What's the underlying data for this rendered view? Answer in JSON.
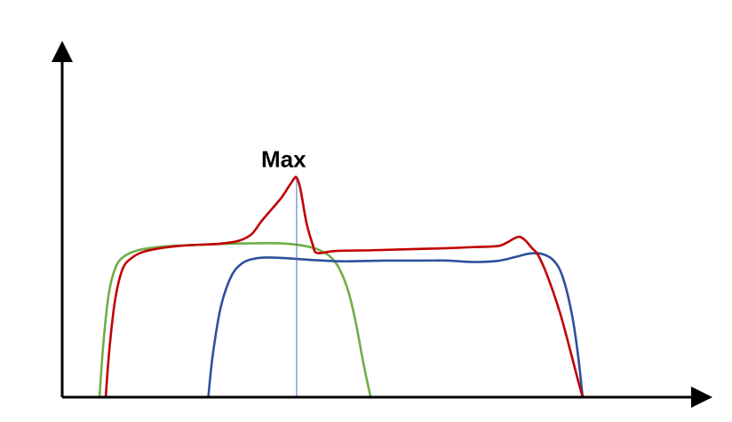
{
  "chart_data": {
    "type": "line",
    "title": "",
    "xlabel": "",
    "ylabel": "",
    "xlim": [
      0,
      100
    ],
    "ylim": [
      0,
      100
    ],
    "grid": false,
    "legend": "none",
    "annotations": [
      {
        "text": "Max",
        "x": 36,
        "y": 67
      }
    ],
    "marker_line": {
      "x": 37.7,
      "y_from": 0,
      "y_to": 63,
      "color": "#4472c4"
    },
    "series": [
      {
        "color": "#70ad47",
        "x": [
          6.0,
          6.6,
          7.5,
          8.7,
          10.2,
          12.0,
          14.0,
          16.5,
          19.5,
          23.0,
          27.0,
          31.0,
          35.0,
          38.5,
          41.0,
          43.0,
          44.5,
          46.0,
          47.2,
          48.4,
          49.6
        ],
        "y": [
          0,
          15,
          30,
          38,
          41,
          42.4,
          43.1,
          43.6,
          43.9,
          44.1,
          44.4,
          44.5,
          44.5,
          43.9,
          42.8,
          40.8,
          37.4,
          30.7,
          21.7,
          10.2,
          0
        ]
      },
      {
        "color": "#2f4f9e",
        "x": [
          23.5,
          24.2,
          25.5,
          27.2,
          29.0,
          31.0,
          33.0,
          36.0,
          40.0,
          45.0,
          52.0,
          58.0,
          62.0,
          66.0,
          70.0,
          73.0,
          75.0,
          77.0,
          79.0,
          80.5,
          82.0,
          83.0,
          83.7
        ],
        "y": [
          0,
          12,
          26,
          35,
          38.8,
          40.1,
          40.4,
          40.2,
          39.7,
          39.3,
          39.5,
          39.5,
          39.5,
          39.1,
          39.4,
          40.6,
          41.5,
          41.5,
          39.6,
          34.7,
          23.7,
          11.5,
          0
        ]
      },
      {
        "color": "#c00000",
        "x": [
          7.0,
          7.6,
          8.5,
          9.7,
          11.2,
          13.0,
          15.5,
          18.5,
          22.0,
          25.5,
          28.5,
          30.5,
          32.0,
          33.8,
          35.3,
          36.5,
          37.3,
          37.7,
          38.3,
          39.3,
          40.3,
          41.0,
          44.0,
          50.0,
          56.0,
          62.0,
          66.0,
          70.0,
          71.5,
          72.7,
          73.6,
          74.5,
          75.5,
          76.5,
          78.0,
          80.0,
          81.5,
          82.8,
          83.7
        ],
        "y": [
          0,
          14,
          28,
          37,
          40.3,
          42,
          43,
          43.7,
          44.1,
          44.4,
          45.3,
          47.2,
          50.8,
          54.6,
          57.8,
          61.1,
          63.2,
          63.5,
          60.3,
          50.3,
          44.1,
          41.7,
          42.3,
          42.5,
          42.8,
          43.1,
          43.4,
          43.7,
          44.7,
          45.9,
          46.4,
          45.3,
          43.2,
          41.2,
          35.2,
          24.7,
          14.9,
          5.9,
          0
        ]
      }
    ]
  }
}
